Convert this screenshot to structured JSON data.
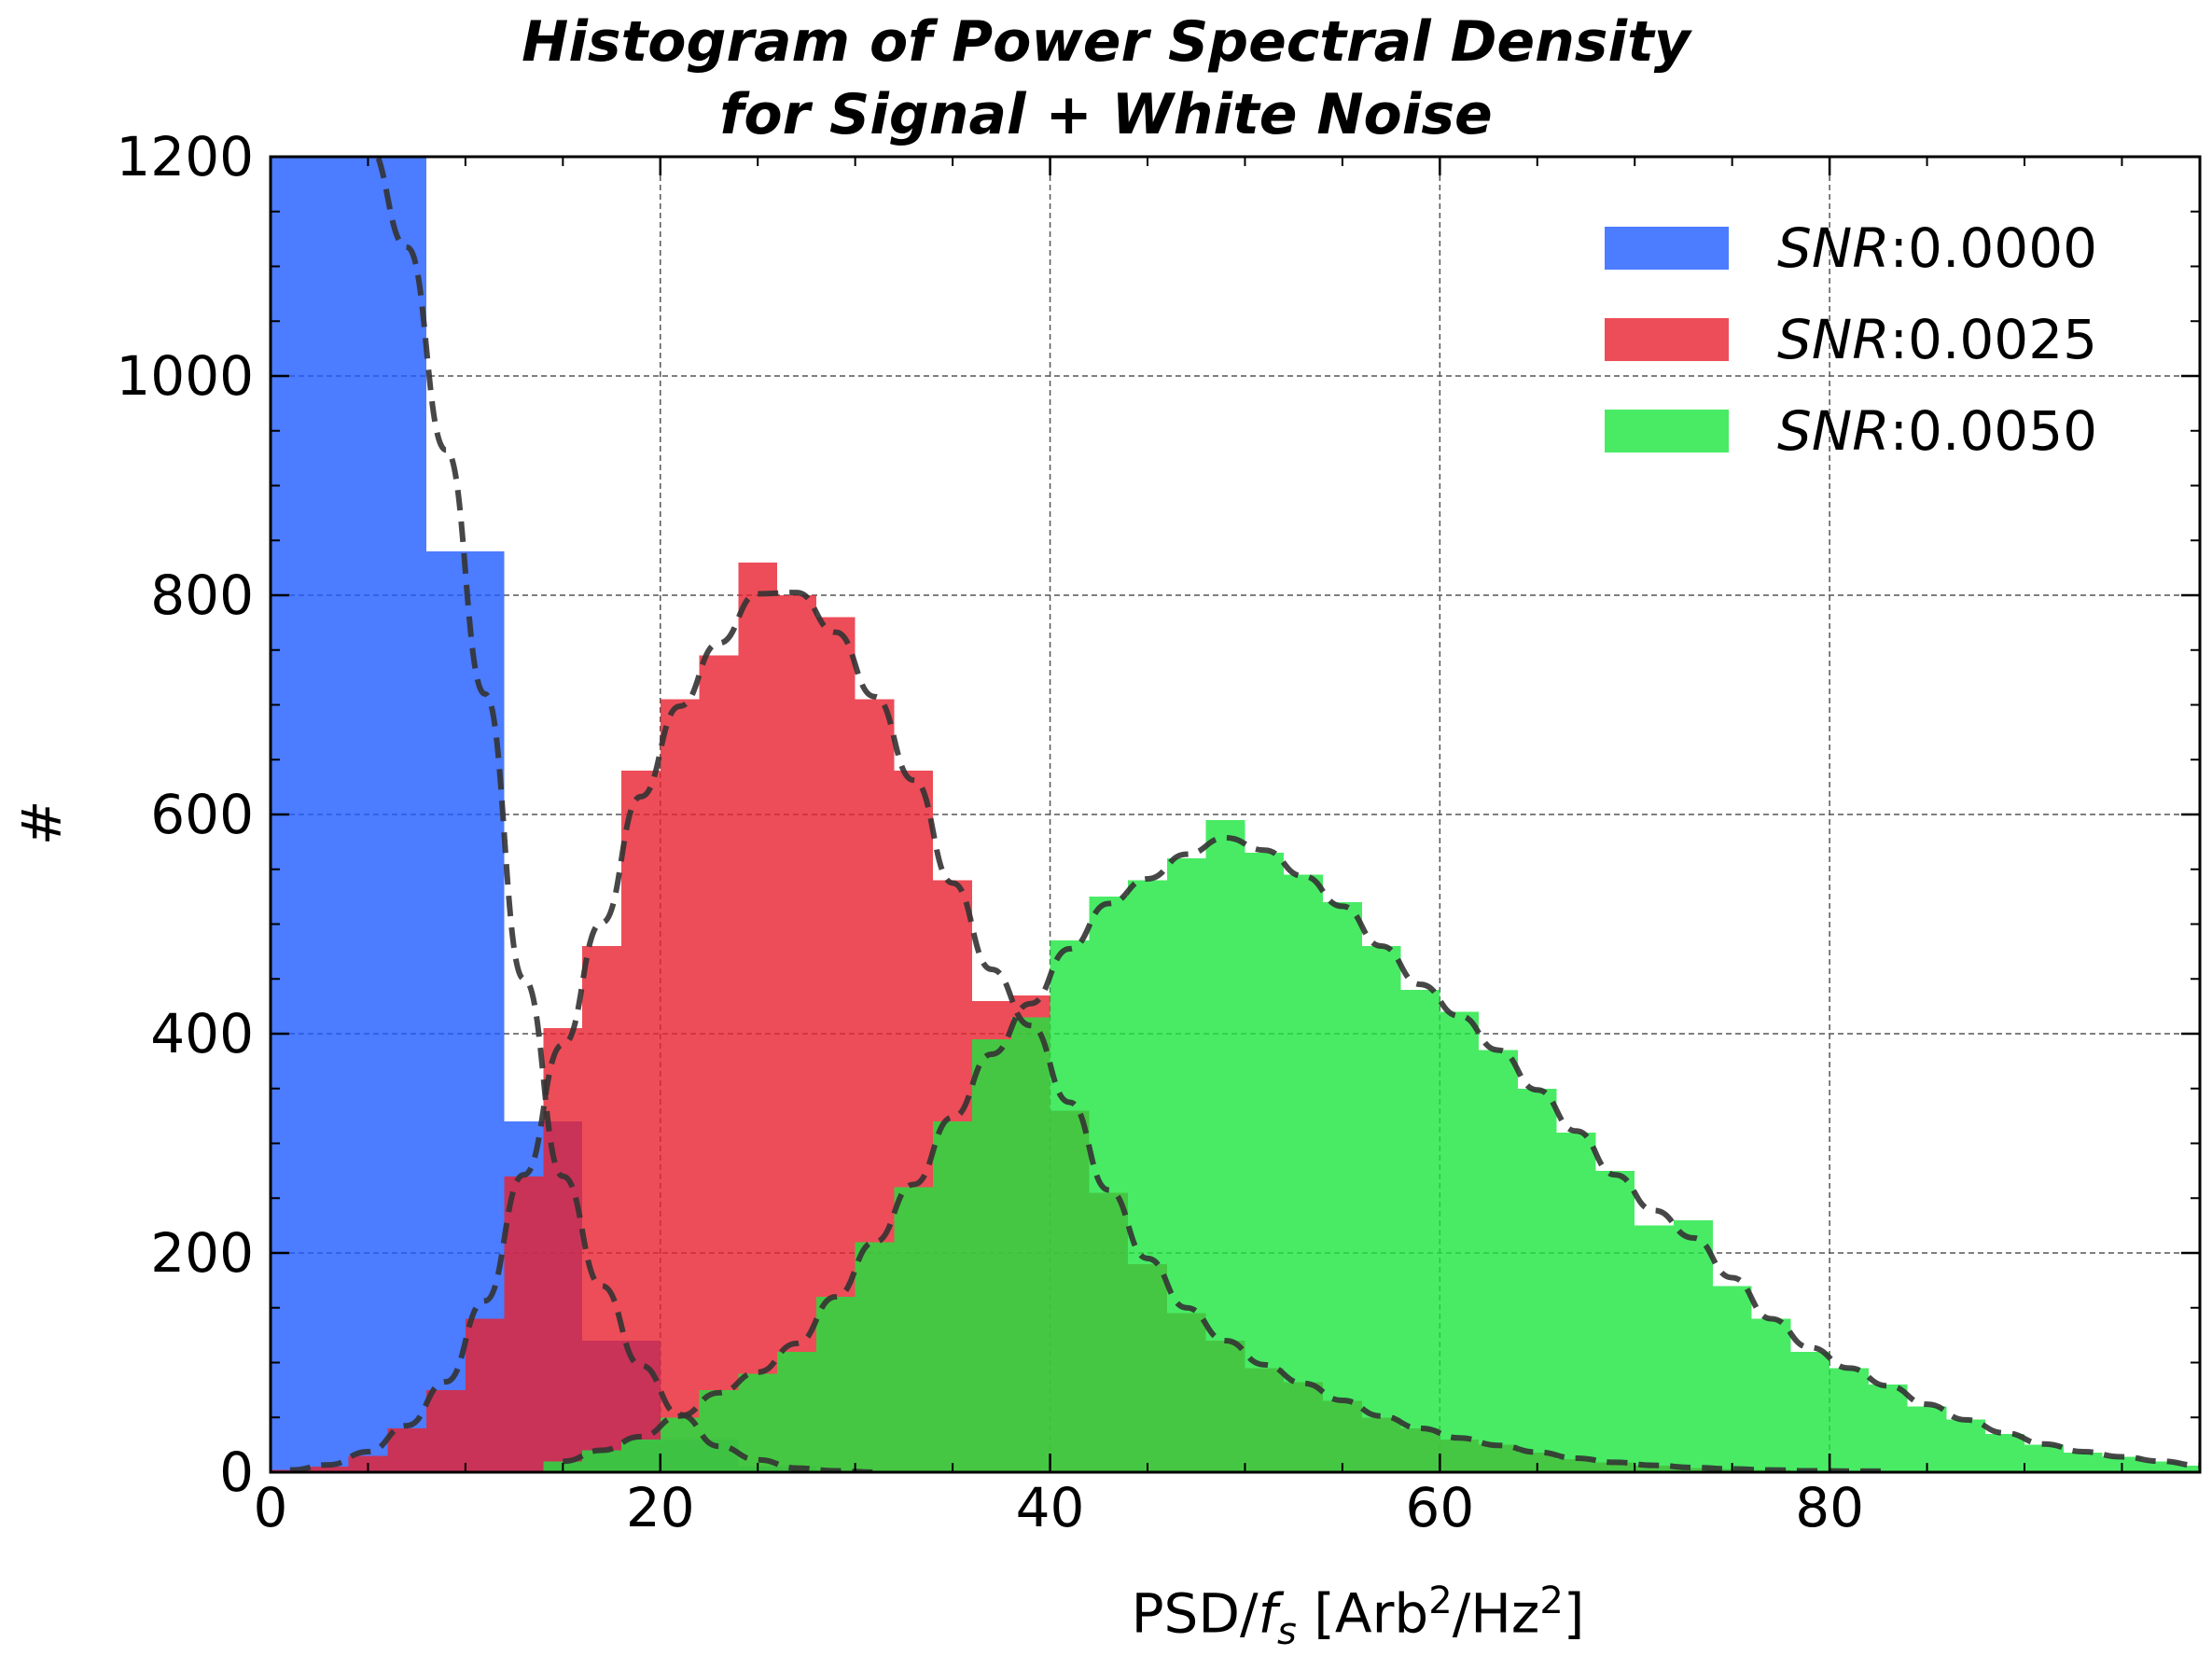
{
  "chart_data": {
    "type": "bar",
    "title": [
      "Histogram of Power Spectral Density",
      "for Signal + White Noise"
    ],
    "xlabel": {
      "base": "PSD/",
      "f": "f",
      "sub": "s",
      "bracket_open": " [Arb",
      "sup1": "2",
      "slash": "/Hz",
      "sup2": "2",
      "bracket_close": "]"
    },
    "ylabel": "#",
    "xlim": [
      0,
      99
    ],
    "ylim": [
      0,
      1200
    ],
    "x_ticks": [
      0,
      20,
      40,
      60,
      80
    ],
    "y_ticks": [
      0,
      200,
      400,
      600,
      800,
      1000,
      1200
    ],
    "grid": true,
    "legend_position": "upper right",
    "bin_width": 2,
    "series": [
      {
        "name": "SNR:0.0000",
        "label_italic": "SNR",
        "label_rest": ":0.0000",
        "color": "#1f5bff",
        "bin_start": 0,
        "values": [
          1210,
          1210,
          1210,
          1210,
          840,
          840,
          320,
          320,
          120,
          120,
          30,
          30,
          5,
          5,
          0,
          0
        ]
      },
      {
        "name": "SNR:0.0025",
        "label_italic": "SNR",
        "label_rest": ":0.0025",
        "color": "#e8202e",
        "bin_start": 0,
        "values": [
          2,
          5,
          15,
          40,
          75,
          140,
          270,
          405,
          480,
          640,
          705,
          745,
          830,
          800,
          780,
          705,
          640,
          540,
          430,
          435,
          330,
          255,
          190,
          145,
          120,
          95,
          82,
          65,
          50,
          40,
          30,
          25,
          18,
          12,
          9,
          6,
          4,
          3,
          2,
          1,
          1,
          1
        ]
      },
      {
        "name": "SNR:0.0050",
        "label_italic": "SNR",
        "label_rest": ":0.0050",
        "color": "#1ce63e",
        "bin_start": 14,
        "values": [
          10,
          20,
          30,
          50,
          75,
          90,
          110,
          160,
          210,
          260,
          320,
          395,
          415,
          485,
          525,
          540,
          560,
          595,
          565,
          545,
          520,
          480,
          440,
          420,
          385,
          350,
          310,
          275,
          225,
          230,
          170,
          140,
          110,
          95,
          80,
          60,
          48,
          35,
          25,
          18,
          14,
          10,
          6
        ]
      }
    ]
  }
}
